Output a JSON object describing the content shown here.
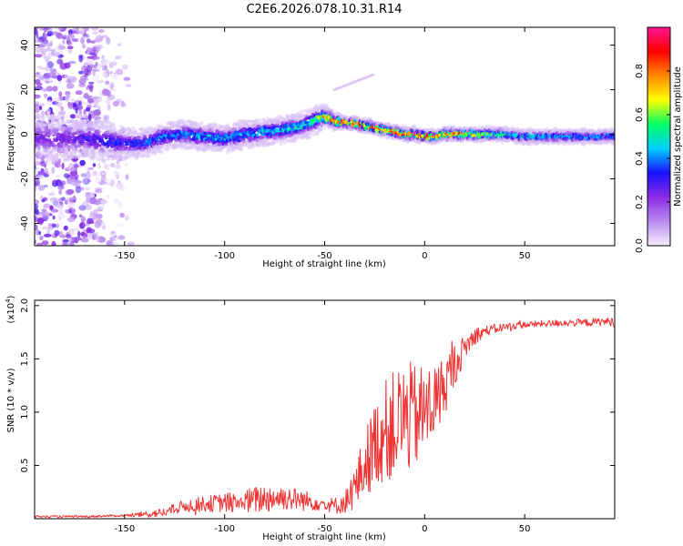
{
  "title": "C2E6.2026.078.10.31.R14",
  "chart_data": [
    {
      "type": "heatmap",
      "name": "spectrogram",
      "xlabel": "Height of straight line (km)",
      "ylabel": "Frequency (Hz)",
      "xlim": [
        -195,
        95
      ],
      "ylim": [
        -50,
        48
      ],
      "xticks": [
        -150,
        -100,
        -50,
        0,
        50
      ],
      "xtick_labels": [
        "-150",
        "-100",
        "-50",
        "0",
        "50"
      ],
      "yticks": [
        -40,
        -20,
        0,
        20,
        40
      ],
      "ytick_labels": [
        "-40",
        "-20",
        "0",
        "20",
        "40"
      ],
      "colorbar": {
        "label": "Normalized spectral amplitude",
        "range": [
          0,
          1
        ],
        "ticks": [
          0.0,
          0.2,
          0.4,
          0.6,
          0.8
        ],
        "tick_labels": [
          "0.0",
          "0.2",
          "0.4",
          "0.6",
          "0.8"
        ],
        "colors": [
          "#f4eefb",
          "#b98bf0",
          "#8a2be2",
          "#1a10ff",
          "#00cfff",
          "#00ff66",
          "#ffff00",
          "#ff8800",
          "#ff0000",
          "#ff1493"
        ]
      },
      "ridge": {
        "x": [
          -195,
          -170,
          -160,
          -150,
          -140,
          -130,
          -120,
          -110,
          -100,
          -90,
          -80,
          -70,
          -60,
          -55,
          -50,
          -45,
          -40,
          -35,
          -30,
          -25,
          -20,
          -15,
          -10,
          -5,
          0,
          5,
          10,
          20,
          30,
          40,
          50,
          60,
          70,
          80,
          90,
          95
        ],
        "freq": [
          -2,
          -2,
          -3,
          -4,
          -4,
          -1,
          0,
          -1,
          -2,
          0,
          1,
          2,
          4,
          6,
          8,
          6,
          5,
          5,
          4,
          3,
          2,
          1,
          0,
          0,
          -1,
          -1,
          0,
          0,
          0,
          0,
          -1,
          -1,
          -1,
          -1,
          -1,
          -1
        ],
        "amplitude": [
          0.22,
          0.3,
          0.35,
          0.35,
          0.4,
          0.42,
          0.45,
          0.45,
          0.45,
          0.45,
          0.48,
          0.5,
          0.5,
          0.55,
          0.8,
          0.85,
          0.8,
          0.85,
          0.85,
          0.85,
          0.9,
          0.9,
          0.92,
          0.9,
          0.9,
          0.88,
          0.85,
          0.8,
          0.7,
          0.55,
          0.5,
          0.48,
          0.45,
          0.45,
          0.45,
          0.45
        ],
        "spread": [
          12,
          8,
          9,
          7,
          6,
          6,
          6,
          6,
          6,
          6,
          6,
          6,
          6,
          6,
          5,
          4,
          3,
          3,
          3,
          3,
          3,
          3,
          3,
          3,
          3,
          3,
          3,
          3,
          3,
          3,
          3,
          3,
          3,
          3,
          3,
          3
        ]
      },
      "noise_region": {
        "x_range": [
          -195,
          -145
        ],
        "freq_range": [
          -50,
          48
        ]
      }
    },
    {
      "type": "line",
      "name": "snr",
      "xlabel": "Height of straight line (km)",
      "ylabel": "SNR (10 * v/v)",
      "y_multiplier": "(x10",
      "y_multiplier_exp": "4",
      "y_multiplier_close": ")",
      "xlim": [
        -195,
        95
      ],
      "ylim": [
        0,
        2.05
      ],
      "xticks": [
        -150,
        -100,
        -50,
        0,
        50
      ],
      "xtick_labels": [
        "-150",
        "-100",
        "-50",
        "0",
        "50"
      ],
      "yticks": [
        0.5,
        1.0,
        1.5,
        2.0
      ],
      "ytick_labels": [
        "0.5",
        "1.0",
        "1.5",
        "2.0"
      ],
      "color": "#ee3333",
      "trend": {
        "x": [
          -195,
          -170,
          -150,
          -140,
          -130,
          -120,
          -110,
          -100,
          -90,
          -80,
          -70,
          -60,
          -50,
          -45,
          -40,
          -35,
          -30,
          -25,
          -20,
          -15,
          -10,
          -5,
          0,
          5,
          10,
          15,
          20,
          25,
          30,
          40,
          50,
          60,
          70,
          80,
          90,
          95
        ],
        "y": [
          0.02,
          0.02,
          0.03,
          0.04,
          0.06,
          0.12,
          0.14,
          0.15,
          0.16,
          0.19,
          0.2,
          0.17,
          0.14,
          0.12,
          0.15,
          0.28,
          0.5,
          0.7,
          0.82,
          0.88,
          0.95,
          0.95,
          1.0,
          1.1,
          1.25,
          1.45,
          1.6,
          1.72,
          1.76,
          1.8,
          1.82,
          1.83,
          1.84,
          1.84,
          1.85,
          1.85
        ]
      },
      "noise_amp": {
        "x": [
          -195,
          -150,
          -140,
          -120,
          -100,
          -80,
          -60,
          -50,
          -40,
          -30,
          -20,
          -10,
          0,
          10,
          20,
          30,
          50,
          95
        ],
        "a": [
          0.01,
          0.01,
          0.03,
          0.06,
          0.09,
          0.14,
          0.1,
          0.06,
          0.1,
          0.32,
          0.48,
          0.55,
          0.45,
          0.28,
          0.12,
          0.05,
          0.03,
          0.04
        ]
      }
    }
  ]
}
